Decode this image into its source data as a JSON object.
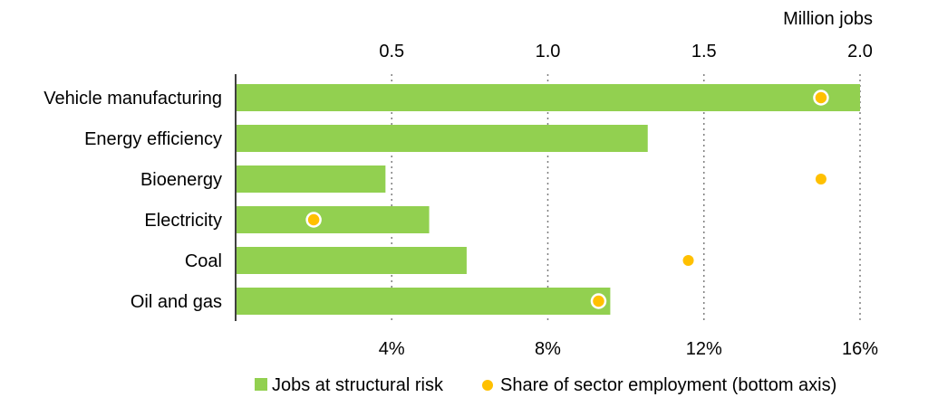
{
  "chart_data": {
    "type": "bar",
    "orientation": "horizontal",
    "categories": [
      "Vehicle manufacturing",
      "Energy efficiency",
      "Bioenergy",
      "Electricity",
      "Coal",
      "Oil and gas"
    ],
    "series": [
      {
        "name": "Jobs at structural risk",
        "type": "bar",
        "axis": "top",
        "values": [
          2.0,
          1.32,
          0.48,
          0.62,
          0.74,
          1.2
        ],
        "color": "#92D050"
      },
      {
        "name": "Share of sector employment (bottom axis)",
        "type": "scatter",
        "axis": "bottom",
        "values": [
          15.0,
          null,
          15.0,
          2.0,
          11.6,
          9.3
        ],
        "outlined": [
          true,
          null,
          false,
          true,
          false,
          true
        ],
        "color": "#FFC000"
      }
    ],
    "top_axis": {
      "label": "Million jobs",
      "range": [
        0,
        2.0
      ],
      "ticks": [
        0.5,
        1.0,
        1.5,
        2.0
      ],
      "tick_labels": [
        "0.5",
        "1.0",
        "1.5",
        "2.0"
      ]
    },
    "bottom_axis": {
      "range": [
        0,
        16
      ],
      "ticks": [
        4,
        8,
        12,
        16
      ],
      "tick_labels": [
        "4%",
        "8%",
        "12%",
        "16%"
      ]
    },
    "grid": "vertical-dotted",
    "legend_position": "bottom"
  }
}
